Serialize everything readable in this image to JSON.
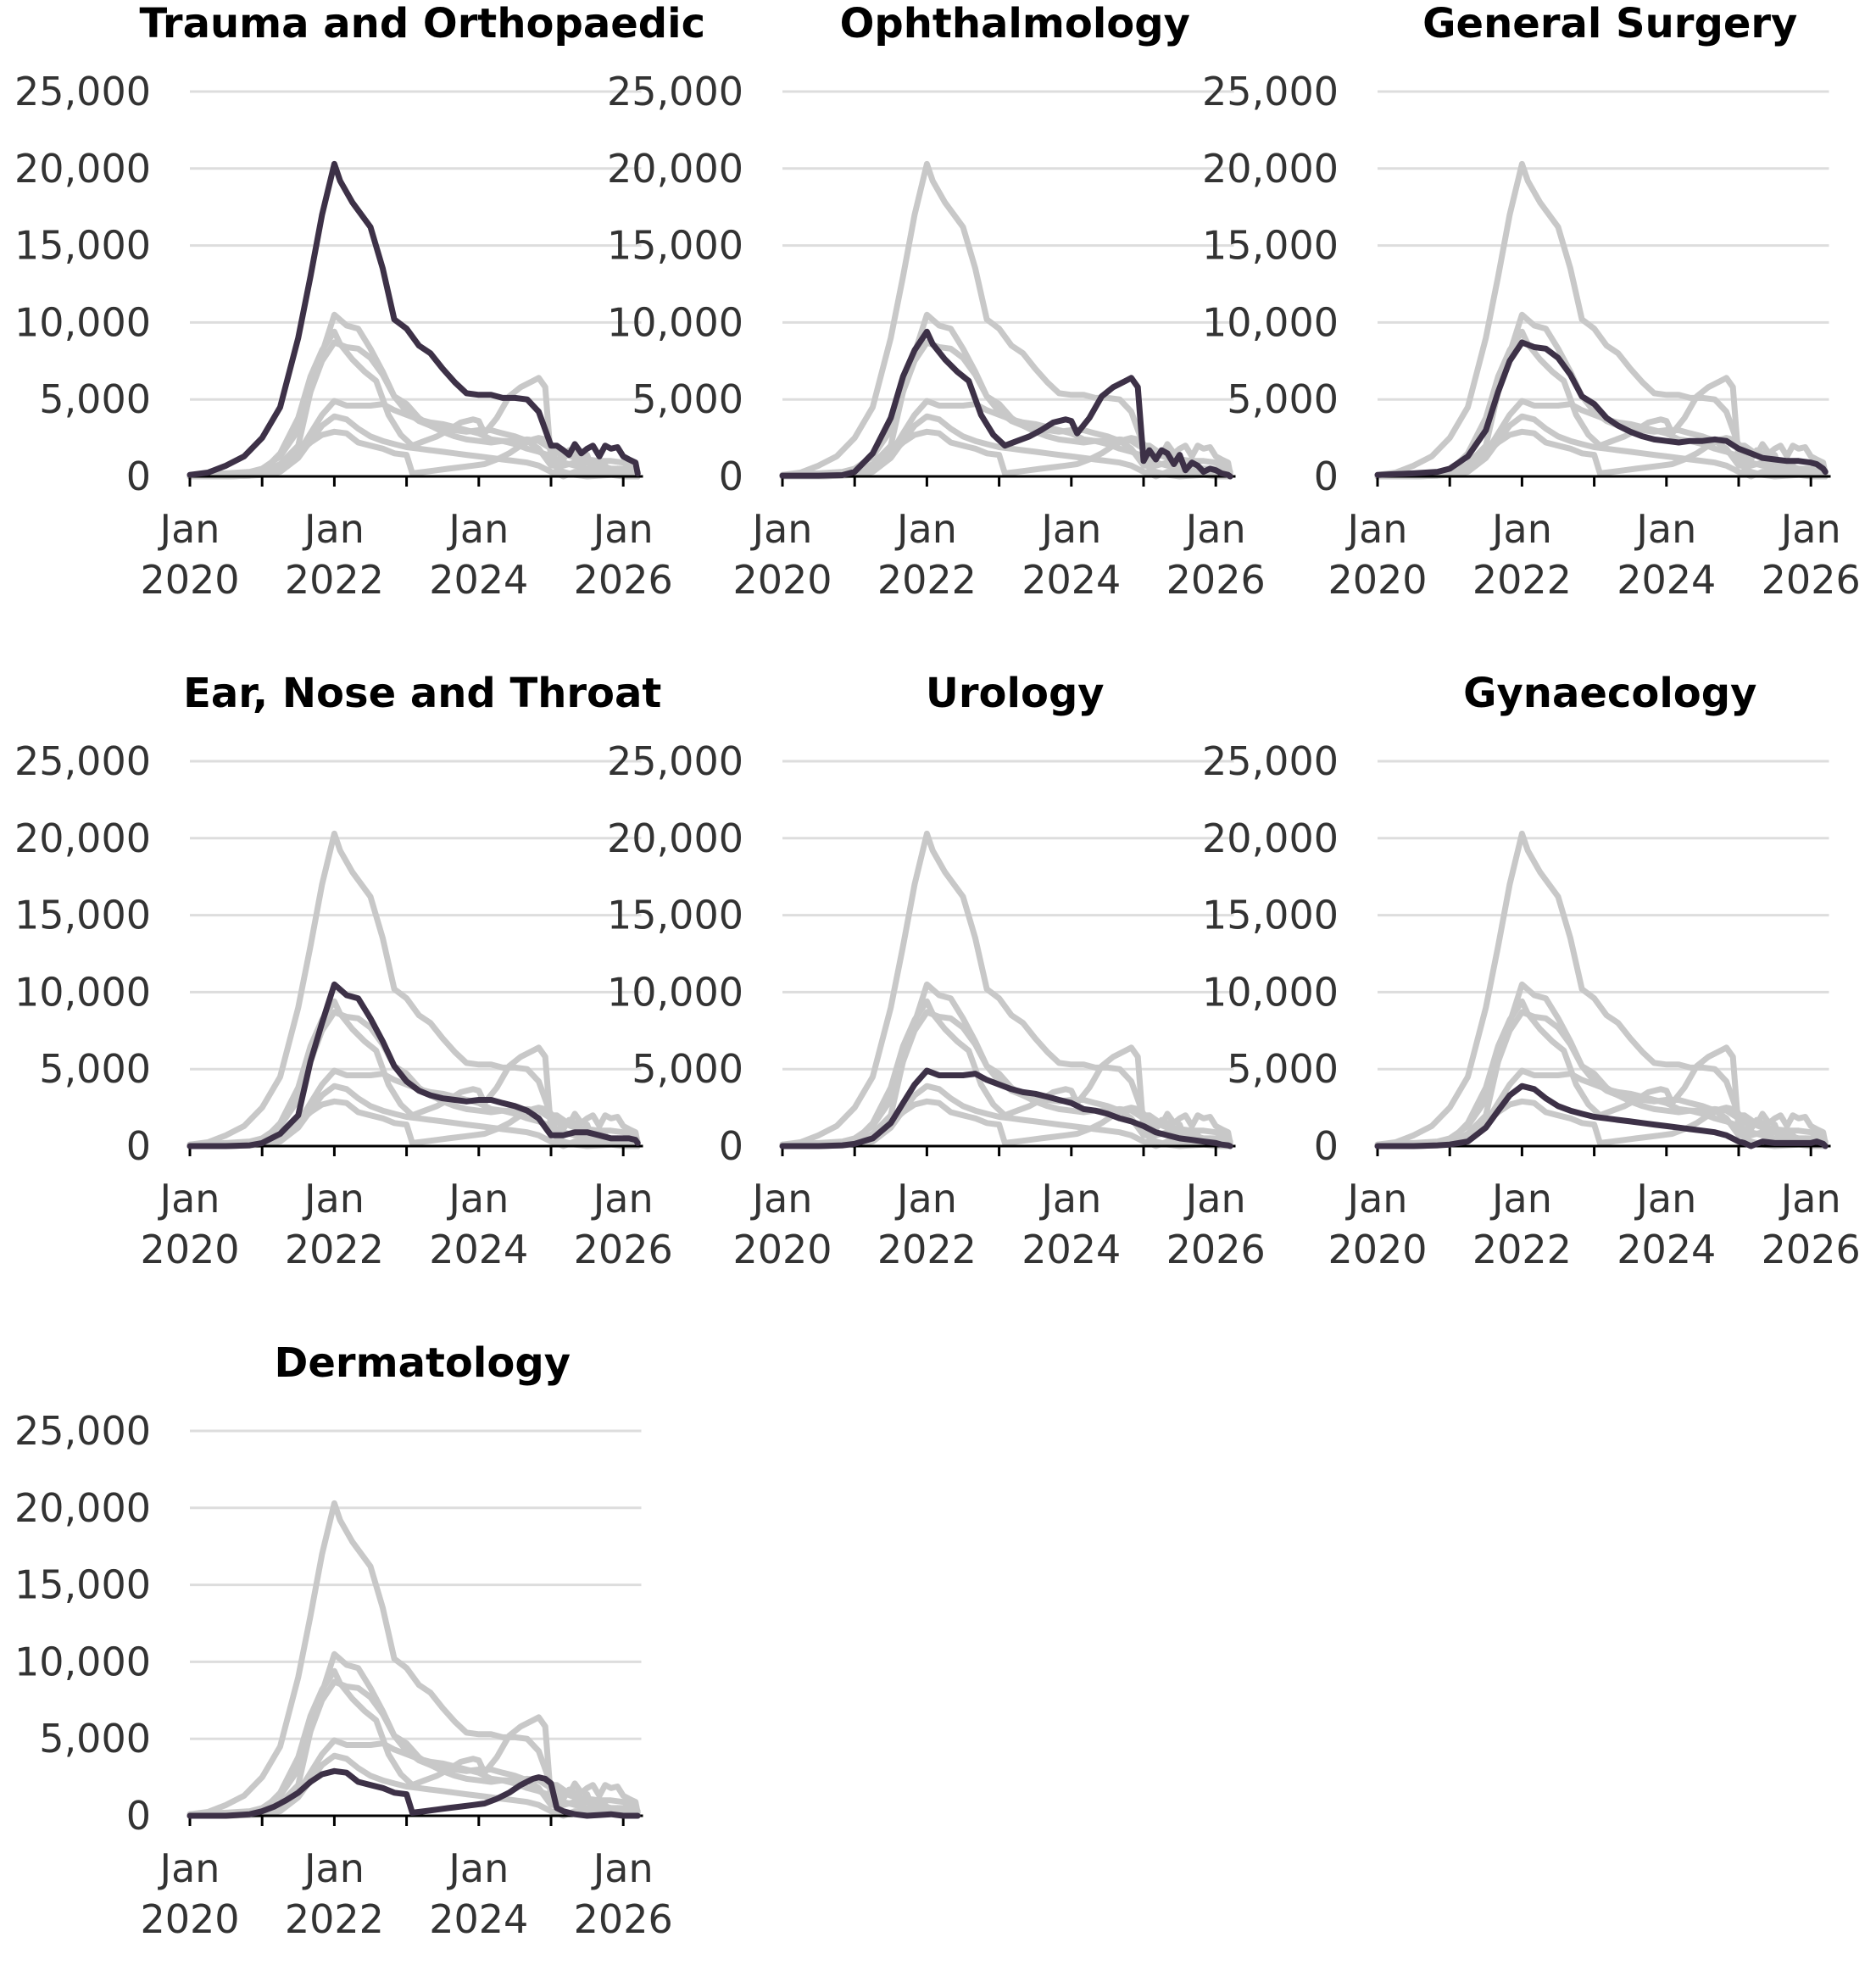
{
  "chart_data": {
    "type": "line",
    "layout": "small-multiples",
    "x_ticks": [
      {
        "x": 2020.0,
        "label_1": "Jan",
        "label_2": "2020"
      },
      {
        "x": 2022.0,
        "label_1": "Jan",
        "label_2": "2022"
      },
      {
        "x": 2024.0,
        "label_1": "Jan",
        "label_2": "2024"
      },
      {
        "x": 2026.0,
        "label_1": "Jan",
        "label_2": "2026"
      }
    ],
    "y_ticks": [
      0,
      5000,
      10000,
      15000,
      20000,
      25000
    ],
    "y_tick_labels": [
      "0",
      "5,000",
      "10,000",
      "15,000",
      "20,000",
      "25,000"
    ],
    "xlim": [
      2020.0,
      2026.25
    ],
    "ylim": [
      0,
      25000
    ],
    "highlight_color": "#3d3147",
    "background_color": "#c8c8c8",
    "panels": [
      {
        "title": "Trauma and Orthopaedic",
        "series_index": 0
      },
      {
        "title": "Ophthalmology",
        "series_index": 1
      },
      {
        "title": "General Surgery",
        "series_index": 2
      },
      {
        "title": "Ear, Nose and Throat",
        "series_index": 3
      },
      {
        "title": "Urology",
        "series_index": 4
      },
      {
        "title": "Gynaecology",
        "series_index": 5
      },
      {
        "title": "Dermatology",
        "series_index": 6
      }
    ],
    "series": [
      {
        "x": [
          2020.0,
          2020.25,
          2020.5,
          2020.75,
          2021.0,
          2021.25,
          2021.5,
          2021.67,
          2021.83,
          2022.0,
          2022.08,
          2022.25,
          2022.5,
          2022.67,
          2022.83,
          2023.0,
          2023.17,
          2023.33,
          2023.5,
          2023.67,
          2023.83,
          2024.0,
          2024.17,
          2024.33,
          2024.5,
          2024.67,
          2024.83,
          2025.0,
          2025.08,
          2025.17,
          2025.25,
          2025.33,
          2025.42,
          2025.5,
          2025.58,
          2025.67,
          2025.75,
          2025.83,
          2025.92,
          2026.0,
          2026.08,
          2026.17,
          2026.2
        ],
        "y": [
          100,
          250,
          700,
          1300,
          2500,
          4500,
          9000,
          13000,
          17000,
          20300,
          19200,
          17800,
          16200,
          13500,
          10200,
          9600,
          8500,
          8000,
          7000,
          6100,
          5400,
          5300,
          5300,
          5100,
          5100,
          5000,
          4200,
          2000,
          2000,
          1700,
          1400,
          2100,
          1500,
          1800,
          2000,
          1300,
          2000,
          1800,
          1900,
          1300,
          1100,
          900,
          200
        ]
      },
      {
        "x": [
          2020.0,
          2020.5,
          2020.83,
          2021.0,
          2021.25,
          2021.5,
          2021.67,
          2021.83,
          2022.0,
          2022.08,
          2022.25,
          2022.42,
          2022.58,
          2022.75,
          2022.92,
          2023.08,
          2023.25,
          2023.42,
          2023.58,
          2023.75,
          2023.92,
          2024.0,
          2024.08,
          2024.25,
          2024.42,
          2024.58,
          2024.75,
          2024.83,
          2024.92,
          2025.0,
          2025.08,
          2025.17,
          2025.25,
          2025.33,
          2025.42,
          2025.5,
          2025.58,
          2025.67,
          2025.75,
          2025.83,
          2025.92,
          2026.0,
          2026.08,
          2026.17,
          2026.2
        ],
        "y": [
          50,
          50,
          80,
          300,
          1500,
          3800,
          6500,
          8200,
          9400,
          8600,
          7600,
          6800,
          6200,
          4000,
          2700,
          2000,
          2300,
          2600,
          3000,
          3500,
          3700,
          3600,
          2800,
          3800,
          5200,
          5800,
          6200,
          6400,
          5800,
          1000,
          1700,
          1100,
          1700,
          1500,
          800,
          1400,
          400,
          900,
          700,
          300,
          500,
          400,
          200,
          100,
          0
        ]
      },
      {
        "x": [
          2020.0,
          2020.5,
          2020.83,
          2021.0,
          2021.25,
          2021.5,
          2021.67,
          2021.83,
          2022.0,
          2022.17,
          2022.33,
          2022.5,
          2022.67,
          2022.83,
          2023.0,
          2023.17,
          2023.33,
          2023.5,
          2023.67,
          2023.83,
          2024.0,
          2024.17,
          2024.33,
          2024.5,
          2024.67,
          2024.83,
          2025.0,
          2025.17,
          2025.33,
          2025.5,
          2025.67,
          2025.83,
          2026.0,
          2026.08,
          2026.17,
          2026.2
        ],
        "y": [
          100,
          200,
          300,
          500,
          1300,
          3000,
          5500,
          7500,
          8700,
          8400,
          8300,
          7700,
          6600,
          5200,
          4700,
          3800,
          3300,
          2900,
          2600,
          2400,
          2300,
          2200,
          2300,
          2300,
          2400,
          2300,
          1800,
          1500,
          1200,
          1100,
          1000,
          1000,
          900,
          800,
          500,
          300
        ]
      },
      {
        "x": [
          2020.0,
          2020.5,
          2020.83,
          2021.0,
          2021.25,
          2021.5,
          2021.67,
          2021.83,
          2022.0,
          2022.17,
          2022.33,
          2022.5,
          2022.67,
          2022.83,
          2023.0,
          2023.17,
          2023.33,
          2023.5,
          2023.67,
          2023.83,
          2024.0,
          2024.17,
          2024.33,
          2024.5,
          2024.67,
          2024.83,
          2025.0,
          2025.17,
          2025.33,
          2025.5,
          2025.67,
          2025.83,
          2026.0,
          2026.08,
          2026.17,
          2026.2
        ],
        "y": [
          0,
          0,
          50,
          200,
          800,
          2000,
          5500,
          8000,
          10500,
          9800,
          9600,
          8300,
          6800,
          5200,
          4200,
          3600,
          3300,
          3100,
          3000,
          2900,
          3000,
          3000,
          2800,
          2600,
          2300,
          1800,
          700,
          700,
          900,
          900,
          700,
          500,
          500,
          500,
          400,
          200
        ]
      },
      {
        "x": [
          2020.0,
          2020.5,
          2020.83,
          2021.0,
          2021.25,
          2021.5,
          2021.67,
          2021.83,
          2022.0,
          2022.17,
          2022.33,
          2022.5,
          2022.67,
          2022.83,
          2023.0,
          2023.17,
          2023.33,
          2023.5,
          2023.67,
          2023.83,
          2024.0,
          2024.17,
          2024.33,
          2024.5,
          2024.67,
          2024.83,
          2025.0,
          2025.17,
          2025.33,
          2025.5,
          2025.67,
          2025.83,
          2026.0,
          2026.08,
          2026.17,
          2026.2
        ],
        "y": [
          0,
          0,
          50,
          150,
          500,
          1500,
          2800,
          4000,
          4900,
          4600,
          4600,
          4600,
          4700,
          4300,
          4000,
          3700,
          3500,
          3400,
          3200,
          3000,
          2800,
          2400,
          2300,
          2100,
          1800,
          1600,
          1300,
          900,
          700,
          500,
          400,
          300,
          200,
          100,
          50,
          0
        ]
      },
      {
        "x": [
          2020.0,
          2020.5,
          2020.83,
          2021.0,
          2021.25,
          2021.5,
          2021.67,
          2021.83,
          2022.0,
          2022.17,
          2022.33,
          2022.5,
          2022.67,
          2022.83,
          2023.0,
          2023.17,
          2023.33,
          2023.5,
          2023.67,
          2023.83,
          2024.0,
          2024.17,
          2024.33,
          2024.5,
          2024.67,
          2024.83,
          2025.0,
          2025.08,
          2025.17,
          2025.33,
          2025.5,
          2025.67,
          2025.83,
          2026.0,
          2026.08,
          2026.17,
          2026.2
        ],
        "y": [
          0,
          0,
          50,
          100,
          300,
          1200,
          2300,
          3300,
          3900,
          3700,
          3100,
          2600,
          2300,
          2100,
          1900,
          1800,
          1700,
          1600,
          1500,
          1400,
          1300,
          1200,
          1100,
          1000,
          900,
          700,
          300,
          200,
          0,
          300,
          200,
          200,
          200,
          200,
          300,
          150,
          0
        ]
      },
      {
        "x": [
          2020.0,
          2020.5,
          2020.83,
          2021.0,
          2021.17,
          2021.33,
          2021.5,
          2021.67,
          2021.83,
          2022.0,
          2022.17,
          2022.33,
          2022.5,
          2022.67,
          2022.83,
          2023.0,
          2023.08,
          2023.25,
          2023.42,
          2023.58,
          2023.75,
          2023.92,
          2024.08,
          2024.25,
          2024.42,
          2024.58,
          2024.75,
          2024.83,
          2024.92,
          2025.0,
          2025.08,
          2025.17,
          2025.33,
          2025.5,
          2025.67,
          2025.83,
          2026.0,
          2026.2
        ],
        "y": [
          0,
          0,
          100,
          300,
          600,
          1000,
          1500,
          2200,
          2700,
          2900,
          2800,
          2200,
          2000,
          1800,
          1500,
          1400,
          200,
          300,
          400,
          500,
          600,
          700,
          800,
          1100,
          1500,
          2000,
          2400,
          2500,
          2400,
          2100,
          500,
          300,
          100,
          0,
          50,
          100,
          0,
          0
        ]
      }
    ]
  }
}
